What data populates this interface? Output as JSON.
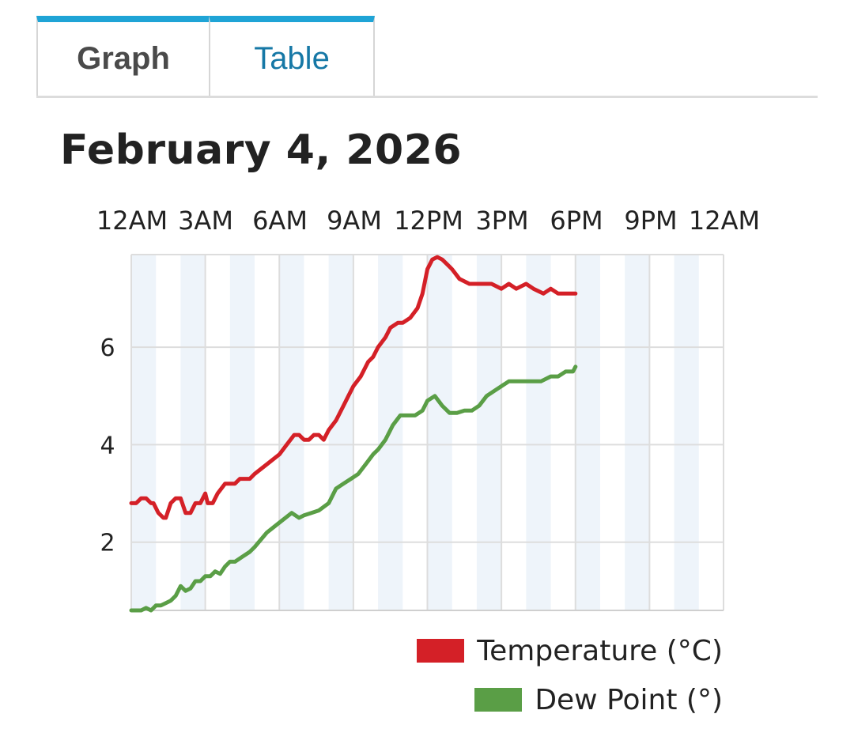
{
  "tabs": [
    {
      "label": "Graph",
      "active": true
    },
    {
      "label": "Table",
      "active": false
    }
  ],
  "date_title": "February 4, 2026",
  "colors": {
    "temperature": "#d42027",
    "dew_point": "#5a9e46",
    "tab_accent": "#1fa4d6",
    "night_band": "#eef4fa",
    "grid": "#dddddd"
  },
  "legend": [
    {
      "label": "Temperature (°C)",
      "color": "#d42027"
    },
    {
      "label": "Dew Point (°)",
      "color": "#5a9e46"
    }
  ],
  "chart_data": {
    "type": "line",
    "x_tick_labels": [
      "12AM",
      "3AM",
      "6AM",
      "9AM",
      "12PM",
      "3PM",
      "6PM",
      "9PM",
      "12AM"
    ],
    "xlim_hours": [
      0,
      24
    ],
    "ylim": [
      0.6,
      7.9
    ],
    "y_ticks": [
      2,
      4,
      6
    ],
    "grid": true,
    "legend_position": "bottom-right",
    "series": [
      {
        "name": "Temperature (°C)",
        "color": "#d42027",
        "x": [
          0,
          0.2,
          0.4,
          0.6,
          0.8,
          0.9,
          1.1,
          1.3,
          1.4,
          1.6,
          1.8,
          2.0,
          2.2,
          2.4,
          2.6,
          2.8,
          3.0,
          3.1,
          3.3,
          3.5,
          3.8,
          4.0,
          4.2,
          4.4,
          4.6,
          4.8,
          5.0,
          5.5,
          6.0,
          6.3,
          6.6,
          6.8,
          7.0,
          7.2,
          7.4,
          7.6,
          7.8,
          8.0,
          8.3,
          8.6,
          8.8,
          9.0,
          9.3,
          9.6,
          9.8,
          10.0,
          10.3,
          10.5,
          10.8,
          11.0,
          11.3,
          11.6,
          11.8,
          12.0,
          12.2,
          12.4,
          12.6,
          12.8,
          13.0,
          13.3,
          13.7,
          14.0,
          14.3,
          14.6,
          15.0,
          15.3,
          15.6,
          16.0,
          16.3,
          16.7,
          17.0,
          17.3,
          17.6,
          18.0
        ],
        "y": [
          2.8,
          2.8,
          2.9,
          2.9,
          2.8,
          2.8,
          2.6,
          2.5,
          2.5,
          2.8,
          2.9,
          2.9,
          2.6,
          2.6,
          2.8,
          2.8,
          3.0,
          2.8,
          2.8,
          3.0,
          3.2,
          3.2,
          3.2,
          3.3,
          3.3,
          3.3,
          3.4,
          3.6,
          3.8,
          4.0,
          4.2,
          4.2,
          4.1,
          4.1,
          4.2,
          4.2,
          4.1,
          4.3,
          4.5,
          4.8,
          5.0,
          5.2,
          5.4,
          5.7,
          5.8,
          6.0,
          6.2,
          6.4,
          6.5,
          6.5,
          6.6,
          6.8,
          7.1,
          7.6,
          7.8,
          7.85,
          7.8,
          7.7,
          7.6,
          7.4,
          7.3,
          7.3,
          7.3,
          7.3,
          7.2,
          7.3,
          7.2,
          7.3,
          7.2,
          7.1,
          7.2,
          7.1,
          7.1,
          7.1
        ]
      },
      {
        "name": "Dew Point (°)",
        "color": "#5a9e46",
        "x": [
          0,
          0.2,
          0.4,
          0.6,
          0.8,
          1.0,
          1.2,
          1.4,
          1.6,
          1.8,
          2.0,
          2.2,
          2.4,
          2.6,
          2.8,
          3.0,
          3.2,
          3.4,
          3.6,
          3.8,
          4.0,
          4.2,
          4.5,
          4.8,
          5.0,
          5.5,
          6.0,
          6.5,
          6.8,
          7.0,
          7.3,
          7.6,
          8.0,
          8.3,
          8.6,
          8.9,
          9.2,
          9.5,
          9.8,
          10.0,
          10.3,
          10.6,
          10.9,
          11.2,
          11.5,
          11.8,
          12.0,
          12.3,
          12.6,
          12.9,
          13.2,
          13.5,
          13.8,
          14.1,
          14.4,
          14.7,
          15.0,
          15.3,
          15.6,
          16.0,
          16.3,
          16.6,
          17.0,
          17.3,
          17.6,
          17.9,
          18.0
        ],
        "y": [
          0.6,
          0.6,
          0.6,
          0.65,
          0.6,
          0.7,
          0.7,
          0.75,
          0.8,
          0.9,
          1.1,
          1.0,
          1.05,
          1.2,
          1.2,
          1.3,
          1.3,
          1.4,
          1.35,
          1.5,
          1.6,
          1.6,
          1.7,
          1.8,
          1.9,
          2.2,
          2.4,
          2.6,
          2.5,
          2.55,
          2.6,
          2.65,
          2.8,
          3.1,
          3.2,
          3.3,
          3.4,
          3.6,
          3.8,
          3.9,
          4.1,
          4.4,
          4.6,
          4.6,
          4.6,
          4.7,
          4.9,
          5.0,
          4.8,
          4.65,
          4.65,
          4.7,
          4.7,
          4.8,
          5.0,
          5.1,
          5.2,
          5.3,
          5.3,
          5.3,
          5.3,
          5.3,
          5.4,
          5.4,
          5.5,
          5.5,
          5.6
        ]
      }
    ]
  }
}
